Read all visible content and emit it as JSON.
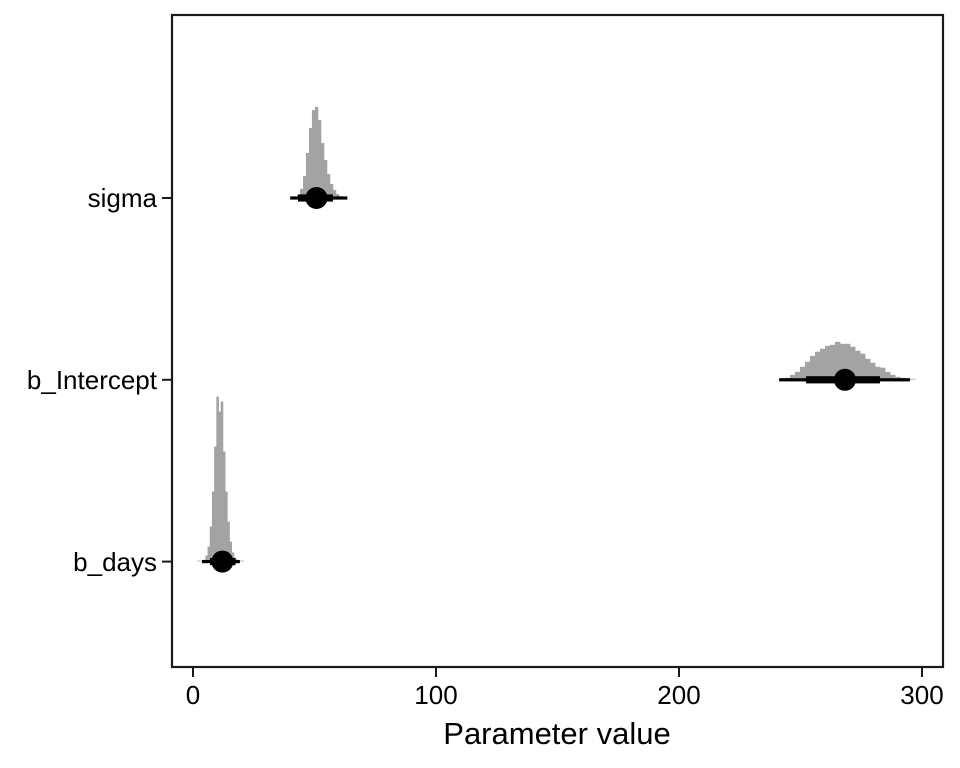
{
  "chart_data": {
    "type": "bar",
    "subtype": "halfeye-posterior-histogram",
    "title": "",
    "xlabel": "Parameter value",
    "ylabel": "",
    "x_ticks": [
      "0",
      "100",
      "200",
      "300"
    ],
    "x_tick_values": [
      0,
      100,
      200,
      300
    ],
    "x_range": [
      -8.6,
      308.6
    ],
    "grid": false,
    "legend": "none",
    "colors": {
      "slab_fill": "#a3a3a3",
      "tail_gray": "#c9c9c9",
      "interval_color": "#000000",
      "point_color": "#000000",
      "panel_border": "#1a1a1a",
      "background": "#ffffff"
    },
    "parameters": [
      {
        "name": "sigma",
        "point_estimate": 50.8,
        "interval_inner": [
          43.2,
          57.6
        ],
        "interval_outer": [
          40.0,
          63.5
        ],
        "hist": {
          "start": 42.8,
          "bin_width": 1.23,
          "rel_heights": [
            0.018,
            0.055,
            0.133,
            0.273,
            0.424,
            0.533,
            0.552,
            0.473,
            0.333,
            0.23,
            0.145,
            0.085,
            0.048,
            0.024,
            0.012
          ]
        }
      },
      {
        "name": "b_Intercept",
        "point_estimate": 268.3,
        "interval_inner": [
          252.3,
          282.7
        ],
        "interval_outer": [
          241.2,
          295.1
        ],
        "hist": {
          "start": 243.6,
          "bin_width": 2.06,
          "rel_heights": [
            0.012,
            0.03,
            0.048,
            0.079,
            0.109,
            0.145,
            0.17,
            0.188,
            0.206,
            0.212,
            0.23,
            0.218,
            0.218,
            0.2,
            0.176,
            0.158,
            0.127,
            0.103,
            0.079,
            0.073,
            0.048,
            0.03,
            0.018,
            0.012,
            0.006
          ]
        }
      },
      {
        "name": "b_days",
        "point_estimate": 12.1,
        "interval_inner": [
          7.0,
          17.5
        ],
        "interval_outer": [
          3.7,
          19.3
        ],
        "hist": {
          "start": 4.2,
          "bin_width": 0.9,
          "rel_heights": [
            0.012,
            0.036,
            0.091,
            0.212,
            0.424,
            0.697,
            1.0,
            0.909,
            0.97,
            0.667,
            0.424,
            0.242,
            0.121,
            0.055,
            0.024,
            0.012
          ]
        }
      }
    ]
  }
}
